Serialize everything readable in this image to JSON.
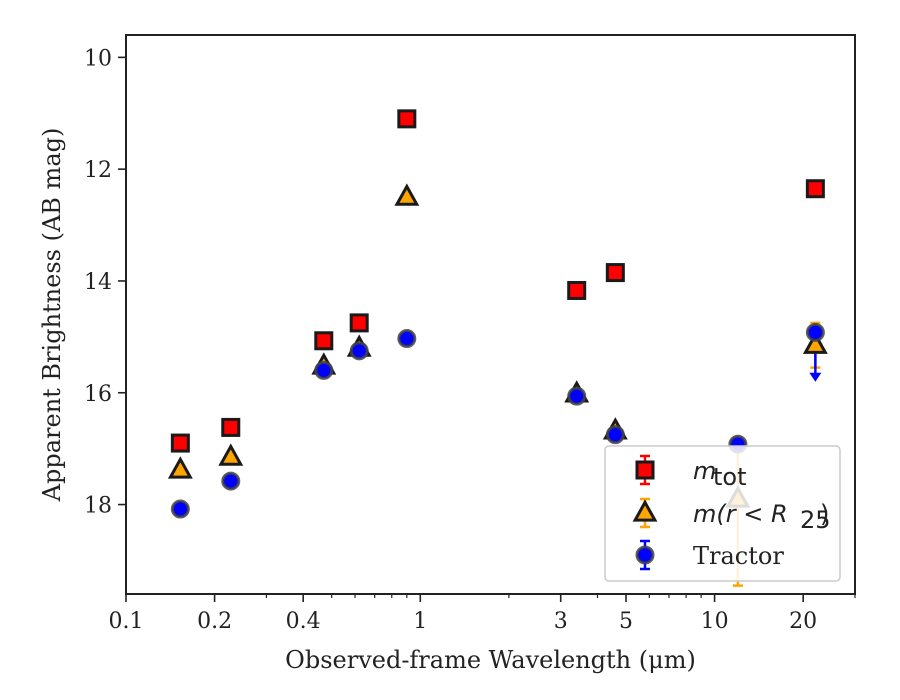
{
  "chart_data": {
    "type": "scatter",
    "xlabel": "Observed-frame Wavelength (μm)",
    "ylabel": "Apparent Brightness (AB mag)",
    "x_scale": "log",
    "xlim": [
      0.1,
      30
    ],
    "ylim": [
      19.6,
      9.6
    ],
    "y_inverted": true,
    "x_ticks": [
      0.1,
      0.2,
      0.4,
      1,
      3,
      5,
      10,
      20
    ],
    "x_tick_labels": [
      "0.1",
      "0.2",
      "0.4",
      "1",
      "3",
      "5",
      "10",
      "20"
    ],
    "y_ticks": [
      10,
      12,
      14,
      16,
      18
    ],
    "y_tick_labels": [
      "10",
      "12",
      "14",
      "16",
      "18"
    ],
    "grid": false,
    "legend_position": "lower-right",
    "series": [
      {
        "name": "m_tot",
        "legend_label_main": "m",
        "legend_label_sub": "tot",
        "marker": "square",
        "color": "#ff0000",
        "edge_color": "#1a1a1a",
        "error_color": "#ff0000",
        "points": [
          {
            "x": 0.153,
            "y": 16.9,
            "yerr": 0.05
          },
          {
            "x": 0.227,
            "y": 16.62,
            "yerr": 0.05
          },
          {
            "x": 0.47,
            "y": 15.07,
            "yerr": 0.02
          },
          {
            "x": 0.62,
            "y": 14.75,
            "yerr": 0.02
          },
          {
            "x": 0.9,
            "y": 11.1,
            "yerr": 0.02
          },
          {
            "x": 3.4,
            "y": 14.17,
            "yerr": 0.02
          },
          {
            "x": 4.6,
            "y": 13.85,
            "yerr": 0.02
          },
          {
            "x": 22.0,
            "y": 12.35,
            "yerr": 0.02
          }
        ]
      },
      {
        "name": "m(r<R25)",
        "legend_label_main": "m(r < R",
        "legend_label_sub": "25",
        "legend_label_end": ")",
        "marker": "triangle",
        "color": "#ffa500",
        "edge_color": "#1a1a1a",
        "error_color": "#ffa500",
        "points": [
          {
            "x": 0.153,
            "y": 17.38,
            "yerr": 0.05
          },
          {
            "x": 0.227,
            "y": 17.15,
            "yerr": 0.05
          },
          {
            "x": 0.47,
            "y": 15.52,
            "yerr": 0.03
          },
          {
            "x": 0.62,
            "y": 15.2,
            "yerr": 0.03
          },
          {
            "x": 0.9,
            "y": 12.5,
            "yerr": 0.02
          },
          {
            "x": 3.4,
            "y": 16.02,
            "yerr": 0.05
          },
          {
            "x": 4.6,
            "y": 16.68,
            "yerr": 0.08
          },
          {
            "x": 12.0,
            "y": 17.9,
            "yerr_low": 0.9,
            "yerr_high": 1.55
          },
          {
            "x": 22.0,
            "y": 15.15,
            "yerr": 0.4
          }
        ]
      },
      {
        "name": "Tractor",
        "marker": "circle",
        "color": "#0000ff",
        "edge_color": "#444444",
        "error_color": "#0000ff",
        "points": [
          {
            "x": 0.153,
            "y": 18.08,
            "yerr": 0.08
          },
          {
            "x": 0.227,
            "y": 17.58,
            "yerr": 0.07
          },
          {
            "x": 0.47,
            "y": 15.6,
            "yerr": 0.04
          },
          {
            "x": 0.62,
            "y": 15.25,
            "yerr": 0.03
          },
          {
            "x": 0.9,
            "y": 15.03,
            "yerr": 0.03
          },
          {
            "x": 3.4,
            "y": 16.06,
            "yerr": 0.05
          },
          {
            "x": 4.6,
            "y": 16.75,
            "yerr": 0.08
          },
          {
            "x": 12.0,
            "y": 16.92,
            "yerr": 0.1
          },
          {
            "x": 22.0,
            "y": 14.92,
            "yerr": 0.1,
            "extra_lower_limit": 15.75
          }
        ]
      }
    ],
    "legend": [
      {
        "label": "m_tot",
        "marker": "square"
      },
      {
        "label": "m(r<R25)",
        "marker": "triangle"
      },
      {
        "label": "Tractor",
        "marker": "circle"
      }
    ]
  }
}
